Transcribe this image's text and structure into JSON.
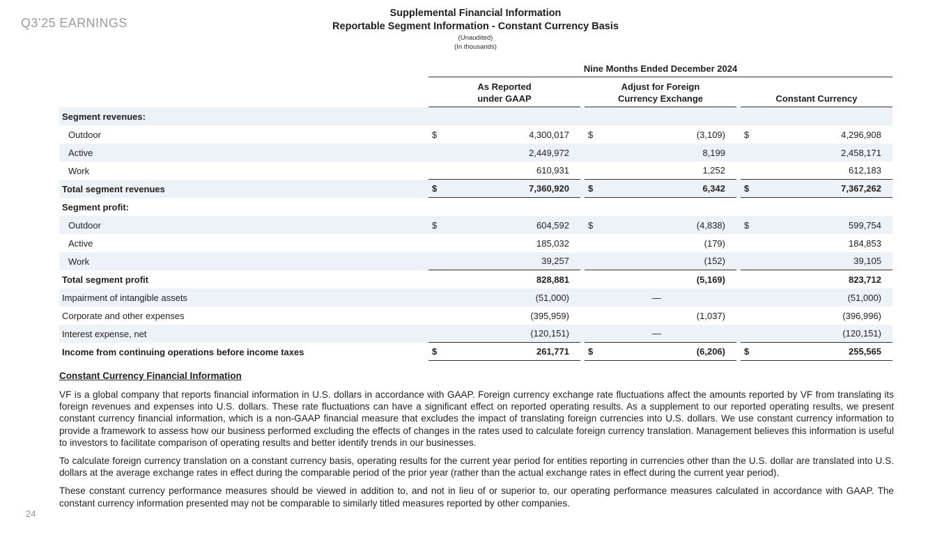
{
  "brand": "Q3’25 EARNINGS",
  "page_number": "24",
  "header": {
    "title": "Supplemental Financial Information",
    "subtitle": "Reportable Segment Information - Constant Currency Basis",
    "note1": "(Unaudited)",
    "note2": "(In thousands)"
  },
  "table": {
    "period": "Nine Months Ended December 2024",
    "col_headers": {
      "gaap1": "As Reported",
      "gaap2": "under GAAP",
      "fx1": "Adjust for Foreign",
      "fx2": "Currency Exchange",
      "cc": "Constant Currency"
    },
    "rows": [
      {
        "label": "Segment revenues:",
        "d": [
          "",
          "",
          ""
        ],
        "v": [
          "",
          "",
          ""
        ]
      },
      {
        "label": "Outdoor",
        "d": [
          "$",
          "$",
          "$"
        ],
        "v": [
          "4,300,017",
          "(3,109)",
          "4,296,908"
        ]
      },
      {
        "label": "Active",
        "d": [
          "",
          "",
          ""
        ],
        "v": [
          "2,449,972",
          "8,199",
          "2,458,171"
        ]
      },
      {
        "label": "Work",
        "d": [
          "",
          "",
          ""
        ],
        "v": [
          "610,931",
          "1,252",
          "612,183"
        ]
      },
      {
        "label": "Total segment revenues",
        "d": [
          "$",
          "$",
          "$"
        ],
        "v": [
          "7,360,920",
          "6,342",
          "7,367,262"
        ]
      },
      {
        "label": "Segment profit:",
        "d": [
          "",
          "",
          ""
        ],
        "v": [
          "",
          "",
          ""
        ]
      },
      {
        "label": "Outdoor",
        "d": [
          "$",
          "$",
          "$"
        ],
        "v": [
          "604,592",
          "(4,838)",
          "599,754"
        ]
      },
      {
        "label": "Active",
        "d": [
          "",
          "",
          ""
        ],
        "v": [
          "185,032",
          "(179)",
          "184,853"
        ]
      },
      {
        "label": "Work",
        "d": [
          "",
          "",
          ""
        ],
        "v": [
          "39,257",
          "(152)",
          "39,105"
        ]
      },
      {
        "label": "Total segment profit",
        "d": [
          "",
          "",
          ""
        ],
        "v": [
          "828,881",
          "(5,169)",
          "823,712"
        ]
      },
      {
        "label": "Impairment of intangible assets",
        "d": [
          "",
          "",
          ""
        ],
        "v": [
          "(51,000)",
          "—",
          "(51,000)"
        ]
      },
      {
        "label": "Corporate and other expenses",
        "d": [
          "",
          "",
          ""
        ],
        "v": [
          "(395,959)",
          "(1,037)",
          "(396,996)"
        ]
      },
      {
        "label": "Interest expense, net",
        "d": [
          "",
          "",
          ""
        ],
        "v": [
          "(120,151)",
          "—",
          "(120,151)"
        ]
      },
      {
        "label": "Income from continuing operations before income taxes",
        "d": [
          "$",
          "$",
          "$"
        ],
        "v": [
          "261,771",
          "(6,206)",
          "255,565"
        ]
      }
    ]
  },
  "notes": {
    "heading": "Constant Currency Financial Information",
    "p1": "VF is a global company that reports financial information in U.S. dollars in accordance with GAAP. Foreign currency exchange rate fluctuations affect the amounts reported by VF from translating its foreign revenues and expenses into U.S. dollars. These rate fluctuations can have a significant effect on reported operating results. As a supplement to our reported operating results, we present constant currency financial information, which is a non-GAAP financial measure that excludes the impact of translating foreign currencies into U.S. dollars. We use constant currency information to provide a framework to assess how our business performed excluding the effects of changes in the rates used to calculate foreign currency translation. Management believes this information is useful to investors to facilitate comparison of operating results and better identify trends in our businesses.",
    "p2": "To calculate foreign currency translation on a constant currency basis, operating results for the current year period for entities reporting in currencies other than the U.S. dollar are translated into U.S. dollars at the average exchange rates in effect during the comparable period of the prior year (rather than the actual exchange rates in effect during the current year period).",
    "p3": "These constant currency performance measures should be viewed in addition to, and not in lieu of or superior to, our operating performance measures calculated in accordance with GAAP. The constant currency information presented may not be comparable to similarly titled measures reported by other companies."
  },
  "colors": {
    "row_shade": "#EDF1F8",
    "brand_gray": "#9B9B9B",
    "rule": "#2F2F2F"
  }
}
